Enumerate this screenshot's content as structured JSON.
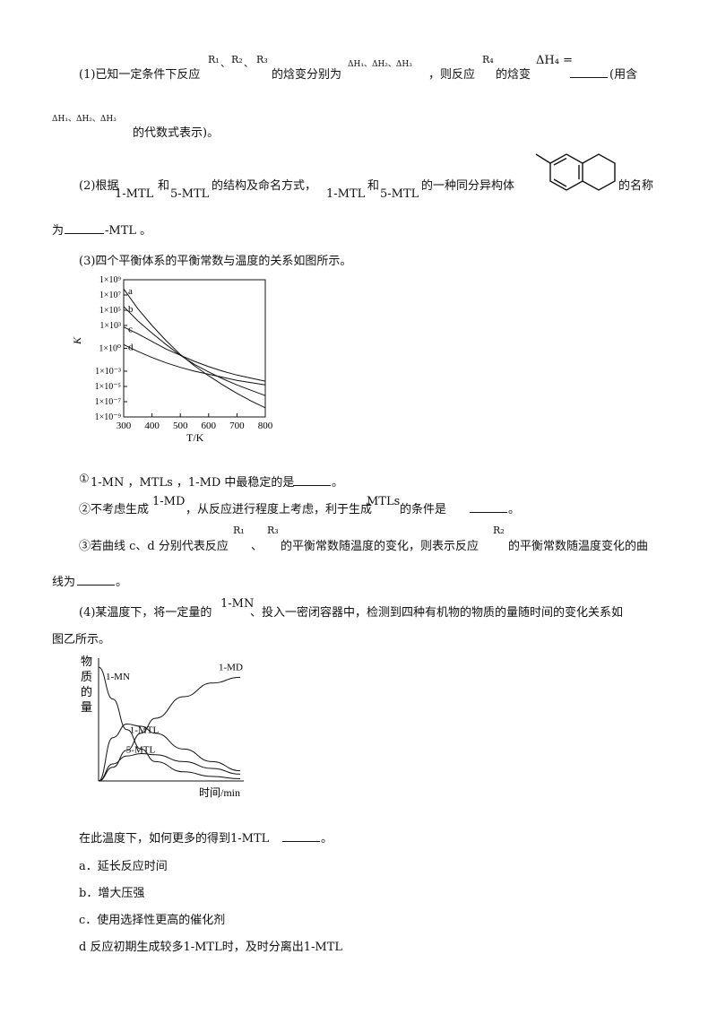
{
  "q1": {
    "line1_prefix": "(1)已知一定条件下反应",
    "r1": "R₁",
    "sep1": "、",
    "r2": "R₂",
    "sep2": "、",
    "r3": "R₃",
    "line1_mid": "的焓变分别为",
    "dh_list": "ΔH₁、ΔH₂、ΔH₃",
    "line1_mid2": "，则反应",
    "r4": "R₄",
    "line1_mid3": "的焓变",
    "dh4": "ΔH₄ =",
    "line1_tail": "(用含",
    "line2_vars": "ΔH₁、ΔH₂、ΔH₃",
    "line2_tail": "的代数式表示)。"
  },
  "q2": {
    "prefix": "(2)根据",
    "name1": "1-MTL",
    "and1": "和",
    "name2": "5-MTL",
    "mid": "的结构及命名方式，",
    "name3": "1-MTL",
    "and2": "和",
    "name4": "5-MTL",
    "mid2": "的一种同分异构体",
    "tail": "的名称",
    "line2_prefix": "为",
    "line2_suffix": "-MTL 。"
  },
  "q3": {
    "intro": "(3)四个平衡体系的平衡常数与温度的关系如图所示。",
    "sub1_prefix": "①",
    "sub1_text": "1-MN ，MTLs ，1-MD 中最稳定的是",
    "sub1_tail": "。",
    "sub2_prefix": "②不考虑生成",
    "sub2_md": "1-MD",
    "sub2_mid": "，从反应进行程度上考虑，利于生成",
    "sub2_mtls": "MTLs",
    "sub2_tail": "的条件是",
    "sub2_end": "。",
    "sub3_prefix": "③若曲线 c、d 分别代表反应",
    "sub3_r1": "R₁",
    "sub3_sep": "、",
    "sub3_r3": "R₃",
    "sub3_mid": "的平衡常数随温度的变化，则表示反应",
    "sub3_r2": "R₂",
    "sub3_tail": "的平衡常数随温度变化的曲",
    "sub3_line2": "线为",
    "sub3_end": "。"
  },
  "q4": {
    "line1": "(4)某温度下，将一定量的",
    "line1_mn": "1-MN",
    "line1_tail": "、投入一密闭容器中，检测到四种有机物的物质的量随时间的变化关系如",
    "line2": "图乙所示。",
    "question": "在此温度下，如何更多的得到1-MTL",
    "question_end": "。",
    "options": [
      "a．延长反应时间",
      "b．增大压强",
      "c．使用选择性更高的催化剂",
      "d 反应初期生成较多1-MTL时，及时分离出1-MTL"
    ]
  },
  "chart_data": [
    {
      "type": "line",
      "xlabel": "T/K",
      "ylabel": "K",
      "x_ticks": [
        300,
        400,
        500,
        600,
        700,
        800
      ],
      "y_tick_labels": [
        "1×10⁹",
        "1×10⁷",
        "1×10⁵",
        "1×10³",
        "1×10⁰",
        "1×10⁻³",
        "1×10⁻⁵",
        "1×10⁻⁷",
        "1×10⁻⁹"
      ],
      "y_tick_exponents": [
        9,
        7,
        5,
        3,
        0,
        -3,
        -5,
        -7,
        -9
      ],
      "xlim": [
        300,
        800
      ],
      "series": [
        {
          "name": "a",
          "x": [
            300,
            350,
            400,
            450,
            500,
            550,
            600,
            650,
            700,
            750,
            800
          ],
          "y_exp": [
            7.8,
            5.2,
            3.0,
            1.0,
            -0.8,
            -2.3,
            -3.6,
            -4.8,
            -5.9,
            -6.9,
            -7.8
          ]
        },
        {
          "name": "b",
          "x": [
            300,
            350,
            400,
            450,
            500,
            550,
            600,
            650,
            700,
            750,
            800
          ],
          "y_exp": [
            5.5,
            3.6,
            2.0,
            0.5,
            -0.9,
            -2.1,
            -3.1,
            -4.0,
            -4.8,
            -5.5,
            -6.2
          ]
        },
        {
          "name": "c",
          "x": [
            300,
            350,
            400,
            450,
            500,
            550,
            600,
            650,
            700,
            750,
            800
          ],
          "y_exp": [
            2.8,
            1.9,
            0.9,
            -0.1,
            -0.9,
            -1.7,
            -2.4,
            -3.0,
            -3.5,
            -3.9,
            -4.3
          ]
        },
        {
          "name": "d",
          "x": [
            300,
            350,
            400,
            450,
            500,
            550,
            600,
            650,
            700,
            750,
            800
          ],
          "y_exp": [
            0.5,
            -0.4,
            -1.2,
            -1.9,
            -2.5,
            -3.0,
            -3.4,
            -3.8,
            -4.2,
            -4.5,
            -4.8
          ]
        }
      ]
    },
    {
      "type": "line",
      "xlabel": "时间/min",
      "ylabel": "物质的量",
      "ylabel_chars": [
        "物",
        "质",
        "的",
        "量"
      ],
      "series": [
        {
          "name": "1-MN",
          "x": [
            0,
            0.5,
            1,
            1.5,
            2,
            3,
            4,
            5
          ],
          "y": [
            1.0,
            0.72,
            0.45,
            0.28,
            0.17,
            0.08,
            0.04,
            0.02
          ]
        },
        {
          "name": "1-MD",
          "x": [
            0,
            0.5,
            1,
            1.5,
            2,
            3,
            4,
            5
          ],
          "y": [
            0.0,
            0.12,
            0.27,
            0.42,
            0.55,
            0.74,
            0.86,
            0.91
          ]
        },
        {
          "name": "1-MTL",
          "x": [
            0,
            0.5,
            1,
            1.5,
            2,
            3,
            4,
            5
          ],
          "y": [
            0.0,
            0.38,
            0.5,
            0.48,
            0.42,
            0.28,
            0.17,
            0.09
          ]
        },
        {
          "name": "5-MTL",
          "x": [
            0,
            0.5,
            1,
            1.5,
            2,
            3,
            4,
            5
          ],
          "y": [
            0.0,
            0.15,
            0.22,
            0.24,
            0.23,
            0.17,
            0.11,
            0.06
          ]
        }
      ]
    }
  ]
}
